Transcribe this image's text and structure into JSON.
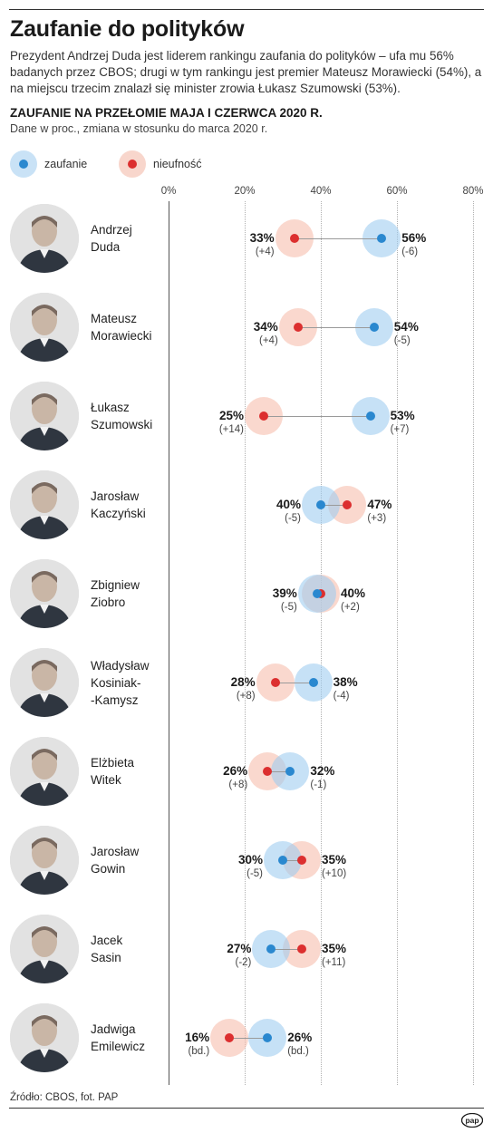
{
  "title": "Zaufanie do polityków",
  "lead": "Prezydent Andrzej Duda jest liderem rankingu zaufania do polityków –  ufa mu 56% badanych przez CBOS; drugi w tym rankingu jest premier Mateusz Morawiecki (54%), a na miejscu trzecim znalazł się minister zrowia Łukasz Szumowski (53%).",
  "logo_text": "pap",
  "colors": {
    "trust": "#2a88cf",
    "trust_halo": "#a0cdf0",
    "distrust": "#dc2f2f",
    "distrust_halo": "#f7beae"
  },
  "chart_data": {
    "type": "dot-plot",
    "title": "ZAUFANIE NA PRZEŁOMIE MAJA I CZERWCA 2020 R.",
    "subtitle": "Dane w proc., zmiana w stosunku do marca 2020 r.",
    "xlim": [
      0,
      80
    ],
    "xticks": [
      "0%",
      "20%",
      "40%",
      "60%",
      "80%"
    ],
    "grid": true,
    "legend_position": "top-left",
    "legend": [
      {
        "key": "trust",
        "label": "zaufanie",
        "icon": "blue-dot-icon"
      },
      {
        "key": "distrust",
        "label": "nieufność",
        "icon": "red-dot-icon"
      }
    ],
    "rows": [
      {
        "name_lines": [
          "Andrzej",
          "Duda"
        ],
        "photo": "portrait-icon",
        "trust": 56,
        "trust_label": "56%",
        "trust_change": "(-6)",
        "distrust": 33,
        "distrust_label": "33%",
        "distrust_change": "(+4)"
      },
      {
        "name_lines": [
          "Mateusz",
          "Morawiecki"
        ],
        "photo": "portrait-icon",
        "trust": 54,
        "trust_label": "54%",
        "trust_change": "(-5)",
        "distrust": 34,
        "distrust_label": "34%",
        "distrust_change": "(+4)"
      },
      {
        "name_lines": [
          "Łukasz",
          "Szumowski"
        ],
        "photo": "portrait-icon",
        "trust": 53,
        "trust_label": "53%",
        "trust_change": "(+7)",
        "distrust": 25,
        "distrust_label": "25%",
        "distrust_change": "(+14)"
      },
      {
        "name_lines": [
          "Jarosław",
          "Kaczyński"
        ],
        "photo": "portrait-icon",
        "trust": 40,
        "trust_label": "40%",
        "trust_change": "(-5)",
        "distrust": 47,
        "distrust_label": "47%",
        "distrust_change": "(+3)"
      },
      {
        "name_lines": [
          "Zbigniew",
          "Ziobro"
        ],
        "photo": "portrait-icon",
        "trust": 39,
        "trust_label": "39%",
        "trust_change": "(-5)",
        "distrust": 40,
        "distrust_label": "40%",
        "distrust_change": "(+2)"
      },
      {
        "name_lines": [
          "Władysław",
          "Kosiniak-",
          "-Kamysz"
        ],
        "photo": "portrait-icon",
        "trust": 38,
        "trust_label": "38%",
        "trust_change": "(-4)",
        "distrust": 28,
        "distrust_label": "28%",
        "distrust_change": "(+8)"
      },
      {
        "name_lines": [
          "Elżbieta",
          "Witek"
        ],
        "photo": "portrait-icon",
        "trust": 32,
        "trust_label": "32%",
        "trust_change": "(-1)",
        "distrust": 26,
        "distrust_label": "26%",
        "distrust_change": "(+8)"
      },
      {
        "name_lines": [
          "Jarosław",
          "Gowin"
        ],
        "photo": "portrait-icon",
        "trust": 30,
        "trust_label": "30%",
        "trust_change": "(-5)",
        "distrust": 35,
        "distrust_label": "35%",
        "distrust_change": "(+10)"
      },
      {
        "name_lines": [
          "Jacek",
          "Sasin"
        ],
        "photo": "portrait-icon",
        "trust": 27,
        "trust_label": "27%",
        "trust_change": "(-2)",
        "distrust": 35,
        "distrust_label": "35%",
        "distrust_change": "(+11)"
      },
      {
        "name_lines": [
          "Jadwiga",
          "Emilewicz"
        ],
        "photo": "portrait-icon",
        "trust": 26,
        "trust_label": "26%",
        "trust_change": "(bd.)",
        "distrust": 16,
        "distrust_label": "16%",
        "distrust_change": "(bd.)"
      }
    ],
    "source": "Źródło: CBOS, fot. PAP"
  }
}
